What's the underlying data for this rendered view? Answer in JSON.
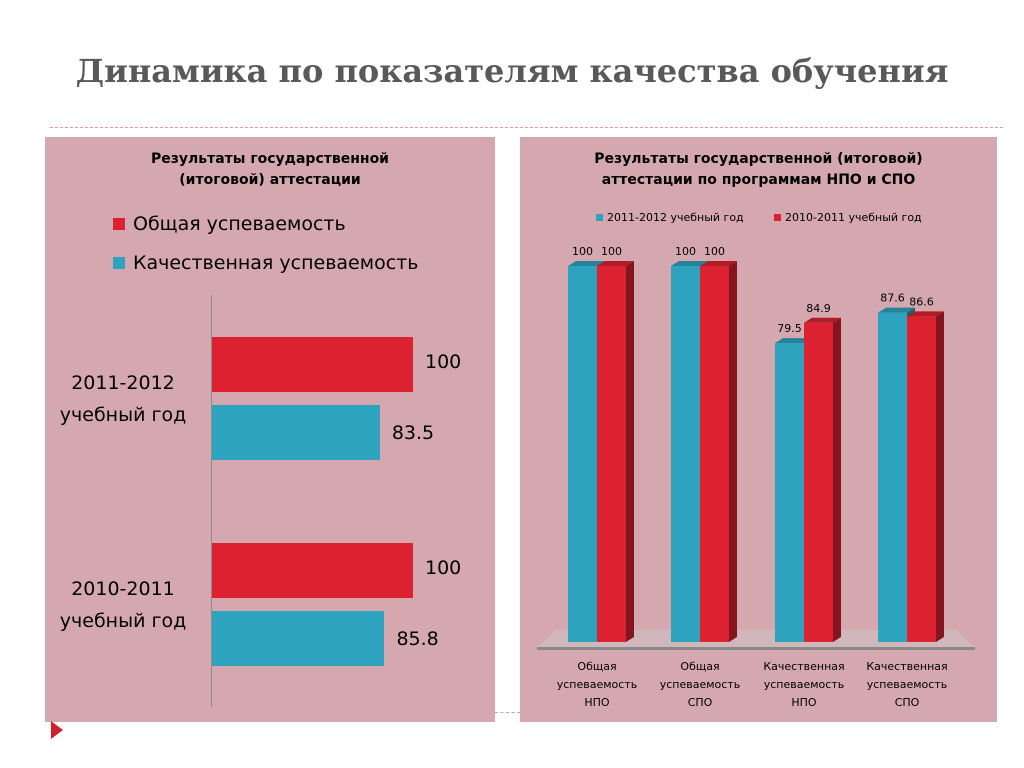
{
  "slide": {
    "title": "Динамика по показателям качества обучения"
  },
  "colors": {
    "red": "#dc2230",
    "blue": "#2ea3c0",
    "panel": "#d5a8b0"
  },
  "chart_data": [
    {
      "type": "bar",
      "orientation": "horizontal",
      "title": "Результаты государственной (итоговой) аттестации",
      "categories": [
        "2011-2012 учебный год",
        "2010-2011 учебный год"
      ],
      "series": [
        {
          "name": "Общая успеваемость",
          "color": "#dc2230",
          "values": [
            100,
            100
          ]
        },
        {
          "name": "Качественная успеваемость",
          "color": "#2ea3c0",
          "values": [
            83.5,
            85.8
          ]
        }
      ],
      "data_labels": [
        [
          "100",
          "83.5"
        ],
        [
          "100",
          "85.8"
        ]
      ],
      "xlim": [
        0,
        100
      ],
      "legend_position": "top",
      "grid": false
    },
    {
      "type": "bar",
      "orientation": "vertical",
      "style": "3d-column",
      "title": "Результаты государственной (итоговой) аттестации по программам НПО и СПО",
      "categories": [
        "Общая успеваемость НПО",
        "Общая успеваемость СПО",
        "Качественная успеваемость НПО",
        "Качественная успеваемость СПО"
      ],
      "category_lines": [
        [
          "Общая",
          "успеваемость",
          "НПО"
        ],
        [
          "Общая",
          "успеваемость",
          "СПО"
        ],
        [
          "Качественная",
          "успеваемость",
          "НПО"
        ],
        [
          "Качественная",
          "успеваемость",
          "СПО"
        ]
      ],
      "series": [
        {
          "name": "2011-2012 учебный год",
          "color": "#2ea3c0",
          "values": [
            100,
            100,
            79.5,
            87.6
          ]
        },
        {
          "name": "2010-2011 учебный год",
          "color": "#dc2230",
          "values": [
            100,
            100,
            84.9,
            86.6
          ]
        }
      ],
      "ylim": [
        0,
        100
      ],
      "legend_position": "top",
      "grid": false
    }
  ]
}
